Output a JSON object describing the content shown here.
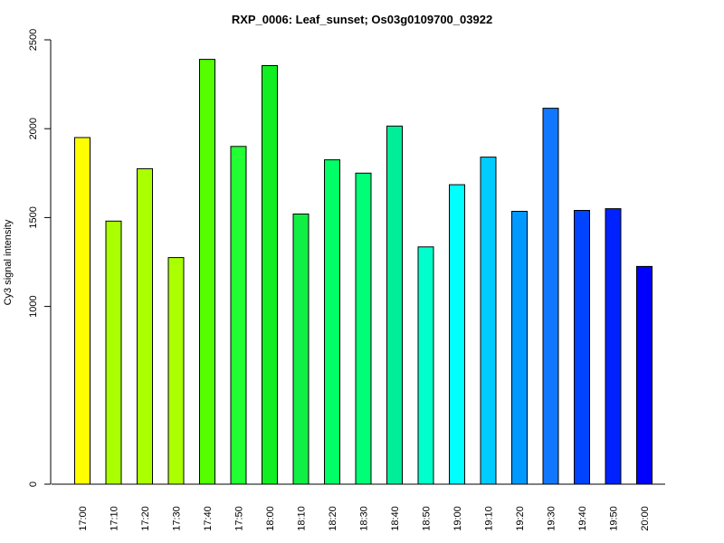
{
  "chart_data": {
    "type": "bar",
    "title": "RXP_0006: Leaf_sunset; Os03g0109700_03922",
    "xlabel": "",
    "ylabel": "Cy3 signal intensity",
    "ylim": [
      0,
      2500
    ],
    "yticks": [
      0,
      1000,
      1500,
      2000,
      2500
    ],
    "grid": false,
    "legend": "none",
    "categories": [
      "17:00",
      "17:10",
      "17:20",
      "17:30",
      "17:40",
      "17:50",
      "18:00",
      "18:10",
      "18:20",
      "18:30",
      "18:40",
      "18:50",
      "19:00",
      "19:10",
      "19:20",
      "19:30",
      "19:40",
      "19:50",
      "20:00"
    ],
    "values": [
      1950,
      1480,
      1775,
      1275,
      2390,
      1900,
      2355,
      1520,
      1825,
      1750,
      2015,
      1335,
      1685,
      1840,
      1535,
      2115,
      1540,
      1550,
      1225
    ],
    "colors": [
      "#ffff00",
      "#aaff00",
      "#aaff00",
      "#aaff00",
      "#55ff00",
      "#22ff33",
      "#11ee22",
      "#11ee44",
      "#00ff66",
      "#00ff77",
      "#00ee99",
      "#00ffcc",
      "#00ffff",
      "#00ccff",
      "#0099ff",
      "#1177ff",
      "#0044ff",
      "#0022ff",
      "#0000ff"
    ]
  }
}
